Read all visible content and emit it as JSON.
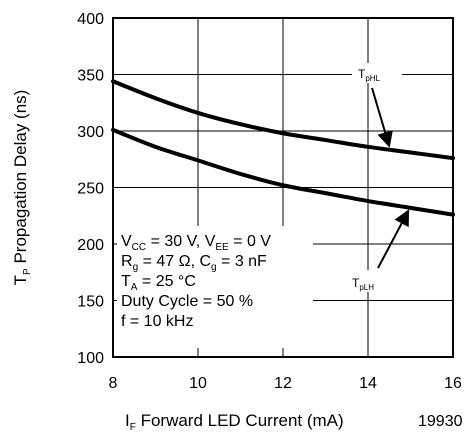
{
  "chart_data": {
    "type": "line",
    "xlabel": {
      "main": "I",
      "sub": "F",
      "rest": " Forward LED Current (mA)"
    },
    "ylabel": {
      "main": "T",
      "sub": "P",
      "rest": " Propagation Delay (ns)"
    },
    "figure_id": "19930",
    "xlim": [
      8,
      16
    ],
    "ylim": [
      100,
      400
    ],
    "xticks": [
      8,
      10,
      12,
      14,
      16
    ],
    "yticks": [
      100,
      150,
      200,
      250,
      300,
      350,
      400
    ],
    "grid": true,
    "series": [
      {
        "name": "TpHL",
        "label_main": "T",
        "label_sub": "pHL",
        "x": [
          8,
          9,
          10,
          11,
          12,
          13,
          14,
          15,
          16
        ],
        "y": [
          344,
          329,
          316,
          306,
          298,
          292,
          286,
          281,
          276
        ]
      },
      {
        "name": "TpLH",
        "label_main": "T",
        "label_sub": "pLH",
        "x": [
          8,
          9,
          10,
          11,
          12,
          13,
          14,
          15,
          16
        ],
        "y": [
          301,
          286,
          274,
          262,
          252,
          245,
          238,
          232,
          226
        ]
      }
    ],
    "conditions": [
      [
        {
          "t": "V"
        },
        {
          "t": "CC",
          "sub": true
        },
        {
          "t": " = 30 V,  V"
        },
        {
          "t": "EE",
          "sub": true
        },
        {
          "t": " = 0 V"
        }
      ],
      [
        {
          "t": "R"
        },
        {
          "t": "g",
          "sub": true
        },
        {
          "t": " = 47 Ω,  C"
        },
        {
          "t": "g",
          "sub": true
        },
        {
          "t": " = 3 nF"
        }
      ],
      [
        {
          "t": "T"
        },
        {
          "t": "A",
          "sub": true
        },
        {
          "t": " = 25 °C"
        }
      ],
      [
        {
          "t": "Duty Cycle = 50 %"
        }
      ],
      [
        {
          "t": "f = 10 kHz"
        }
      ]
    ]
  }
}
